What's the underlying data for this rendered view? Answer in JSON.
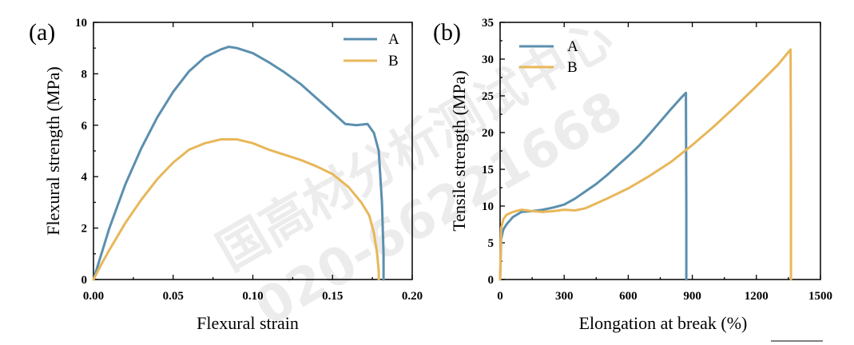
{
  "watermark": {
    "line1": "国高材分析测试中心",
    "line2": "020-66221668"
  },
  "colors": {
    "A": "#5b8fae",
    "B": "#e8b75a"
  },
  "chart_data": [
    {
      "panel_label": "(a)",
      "type": "line",
      "xlabel": "Flexural strain",
      "ylabel": "Flexural strength (MPa)",
      "xlim": [
        0,
        0.2
      ],
      "ylim": [
        0,
        10
      ],
      "xticks": [
        "0.00",
        "0.05",
        "0.10",
        "0.15",
        "0.20"
      ],
      "yticks": [
        "0",
        "2",
        "4",
        "6",
        "8",
        "10"
      ],
      "legend_position": "top-right",
      "series": [
        {
          "name": "A",
          "x": [
            0,
            0.005,
            0.01,
            0.02,
            0.03,
            0.04,
            0.05,
            0.06,
            0.07,
            0.08,
            0.085,
            0.09,
            0.1,
            0.11,
            0.12,
            0.13,
            0.14,
            0.15,
            0.158,
            0.165,
            0.172,
            0.176,
            0.179,
            0.181,
            0.182,
            0.182
          ],
          "y": [
            0,
            1.0,
            2.0,
            3.7,
            5.1,
            6.3,
            7.3,
            8.1,
            8.65,
            8.95,
            9.05,
            9.0,
            8.8,
            8.45,
            8.05,
            7.6,
            7.05,
            6.5,
            6.05,
            6.0,
            6.05,
            5.7,
            5.0,
            3.0,
            1.0,
            0
          ]
        },
        {
          "name": "B",
          "x": [
            0,
            0.005,
            0.01,
            0.02,
            0.03,
            0.04,
            0.05,
            0.06,
            0.07,
            0.08,
            0.09,
            0.1,
            0.11,
            0.12,
            0.13,
            0.14,
            0.15,
            0.16,
            0.168,
            0.173,
            0.176,
            0.178,
            0.179,
            0.179
          ],
          "y": [
            0,
            0.6,
            1.15,
            2.2,
            3.1,
            3.9,
            4.55,
            5.05,
            5.3,
            5.45,
            5.45,
            5.3,
            5.05,
            4.85,
            4.65,
            4.4,
            4.1,
            3.6,
            3.0,
            2.5,
            1.8,
            1.0,
            0.3,
            0
          ]
        }
      ]
    },
    {
      "panel_label": "(b)",
      "type": "line",
      "xlabel": "Elongation at break (%)",
      "ylabel": "Tensile strength (MPa)",
      "xlim": [
        0,
        1500
      ],
      "ylim": [
        0,
        35
      ],
      "xticks": [
        "0",
        "300",
        "600",
        "900",
        "1200",
        "1500"
      ],
      "yticks": [
        "0",
        "5",
        "10",
        "15",
        "20",
        "25",
        "30",
        "35"
      ],
      "legend_position": "top-left",
      "series": [
        {
          "name": "A",
          "x": [
            0,
            5,
            15,
            30,
            60,
            100,
            150,
            200,
            250,
            300,
            350,
            400,
            450,
            500,
            550,
            600,
            650,
            700,
            750,
            800,
            850,
            870,
            872,
            872
          ],
          "y": [
            0,
            5.5,
            6.8,
            7.5,
            8.5,
            9.2,
            9.3,
            9.5,
            9.8,
            10.2,
            11.0,
            12.0,
            13.0,
            14.2,
            15.5,
            16.8,
            18.2,
            19.8,
            21.5,
            23.2,
            24.8,
            25.4,
            10,
            0
          ]
        },
        {
          "name": "B",
          "x": [
            0,
            5,
            15,
            30,
            60,
            100,
            150,
            200,
            250,
            300,
            350,
            400,
            500,
            600,
            700,
            800,
            900,
            1000,
            1100,
            1200,
            1300,
            1360,
            1362,
            1362
          ],
          "y": [
            0,
            7.0,
            8.2,
            8.8,
            9.2,
            9.5,
            9.3,
            9.2,
            9.3,
            9.5,
            9.4,
            9.7,
            11.0,
            12.4,
            14.1,
            16.0,
            18.3,
            20.8,
            23.5,
            26.3,
            29.2,
            31.3,
            15,
            0
          ]
        }
      ]
    }
  ]
}
